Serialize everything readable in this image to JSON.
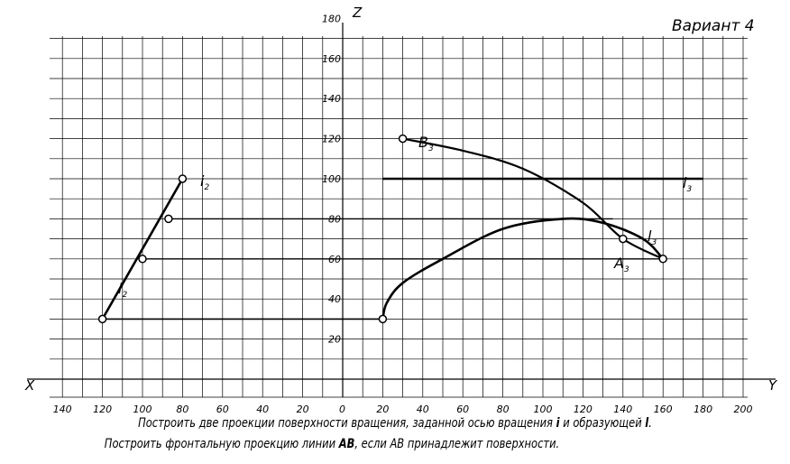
{
  "variant": "Вариант 4",
  "axes": {
    "z_label": "Z",
    "x_label": "X",
    "y_label": "Y",
    "z_ticks": [
      "20",
      "40",
      "60",
      "80",
      "100",
      "120",
      "140",
      "160",
      "180"
    ],
    "x_ticks": [
      "140",
      "120",
      "100",
      "80",
      "60",
      "40",
      "20"
    ],
    "origin": "0",
    "y_ticks": [
      "20",
      "40",
      "60",
      "80",
      "100",
      "120",
      "140",
      "160",
      "180",
      "200"
    ]
  },
  "labels": {
    "i2": {
      "letter": "i",
      "index": "2"
    },
    "l2": {
      "letter": "l",
      "index": "2"
    },
    "B3": {
      "letter": "B",
      "index": "3"
    },
    "i3": {
      "letter": "i",
      "index": "3"
    },
    "l3": {
      "letter": "l",
      "index": "3"
    },
    "A3": {
      "letter": "A",
      "index": "3"
    }
  },
  "task": {
    "line1_text": "Построить две проекции поверхности вращения, заданной осью вращения ",
    "line1_i": "i",
    "line1_mid": " и образующей ",
    "line1_l": "l",
    "line1_end": ".",
    "line2_text": "Построить фронтальную проекцию линии ",
    "line2_ab": "AB",
    "line2_end": ", если AB принадлежит поверхности."
  },
  "geometry_data": {
    "frontal_axis_i2": [
      [
        80,
        100
      ],
      [
        120,
        30
      ]
    ],
    "generatrix_l2_points": [
      [
        120,
        30
      ],
      [
        100,
        60
      ],
      [
        87,
        80
      ],
      [
        80,
        100
      ]
    ],
    "profile_axis_i3_z": 100,
    "profile_axis_i3_y_range": [
      20,
      180
    ],
    "curve_B3_A3": [
      [
        30,
        120
      ],
      [
        60,
        114
      ],
      [
        90,
        105
      ],
      [
        120,
        88
      ],
      [
        140,
        70
      ],
      [
        160,
        60
      ]
    ],
    "generatrix_l3": [
      [
        20,
        30
      ],
      [
        22,
        38
      ],
      [
        30,
        48
      ],
      [
        50,
        60
      ],
      [
        80,
        75
      ],
      [
        110,
        80
      ],
      [
        130,
        78
      ],
      [
        150,
        70
      ],
      [
        160,
        60
      ]
    ],
    "point_B3": [
      30,
      120
    ],
    "point_A3": [
      140,
      70
    ],
    "connection_lines_z": [
      30,
      60,
      80
    ]
  }
}
